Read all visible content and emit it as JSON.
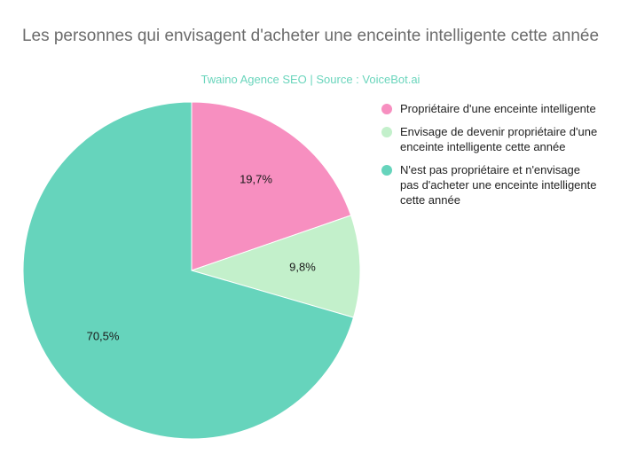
{
  "chart_data": {
    "type": "pie",
    "title": "Les personnes qui envisagent d'acheter une enceinte intelligente cette année",
    "subtitle": "Twaino Agence SEO | Source : VoiceBot.ai",
    "legend_position": "right",
    "start_angle_deg": 0,
    "direction": "clockwise",
    "slices": [
      {
        "label": "Propriétaire d'une enceinte intelligente",
        "value": 19.7,
        "value_label": "19,7%",
        "color": "#f78fc0"
      },
      {
        "label": "Envisage de devenir propriétaire d'une enceinte intelligente cette année",
        "value": 9.8,
        "value_label": "9,8%",
        "color": "#c3f0cb"
      },
      {
        "label": "N'est pas propriétaire et n'envisage pas d'acheter une enceinte intelligente cette année",
        "value": 70.5,
        "value_label": "70,5%",
        "color": "#66d4bc"
      }
    ]
  }
}
